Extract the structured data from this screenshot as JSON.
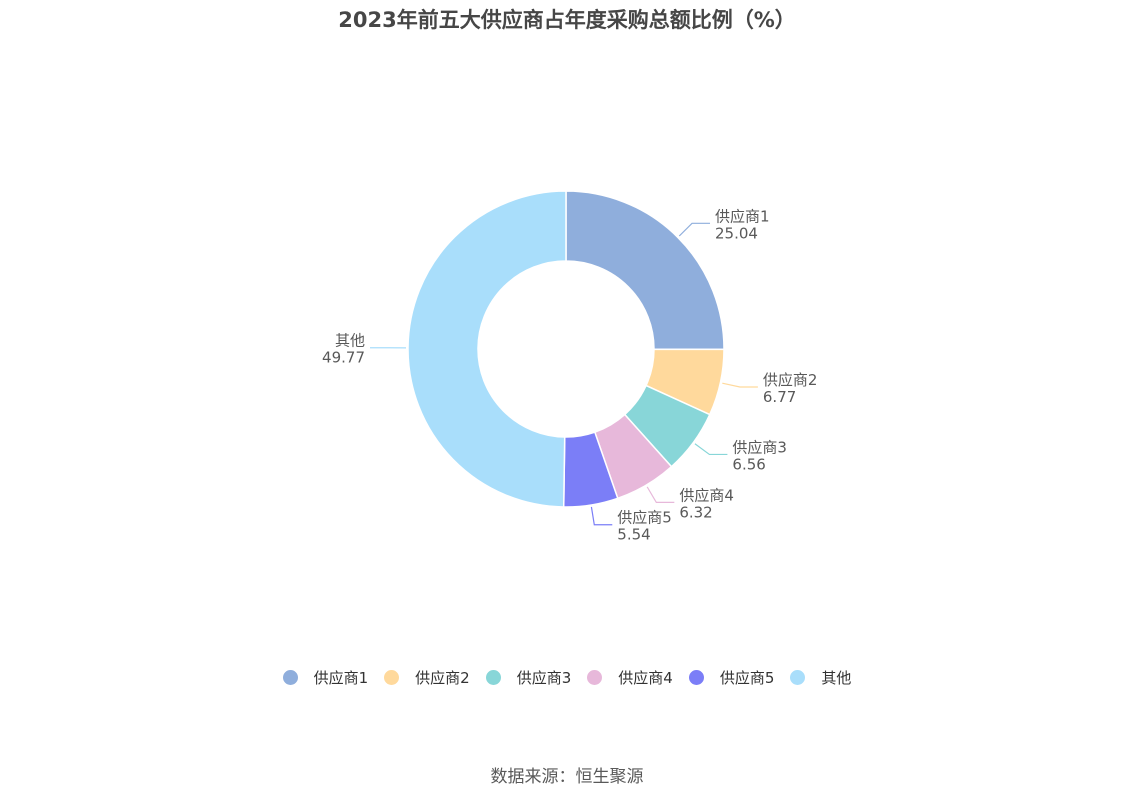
{
  "chart_data": {
    "type": "pie",
    "title": "2023年前五大供应商占年度采购总额比例（%）",
    "categories": [
      "供应商1",
      "供应商2",
      "供应商3",
      "供应商4",
      "供应商5",
      "其他"
    ],
    "values": [
      25.04,
      6.77,
      6.56,
      6.32,
      5.54,
      49.77
    ],
    "colors": [
      "#8faedc",
      "#ffd99c",
      "#88d6d8",
      "#e7b8da",
      "#7b7ef7",
      "#a9defb"
    ],
    "label_values": [
      "25.04",
      "6.77",
      "6.56",
      "6.32",
      "5.54",
      "49.77"
    ],
    "legend_position": "bottom",
    "donut": true
  },
  "source": "数据来源：恒生聚源"
}
